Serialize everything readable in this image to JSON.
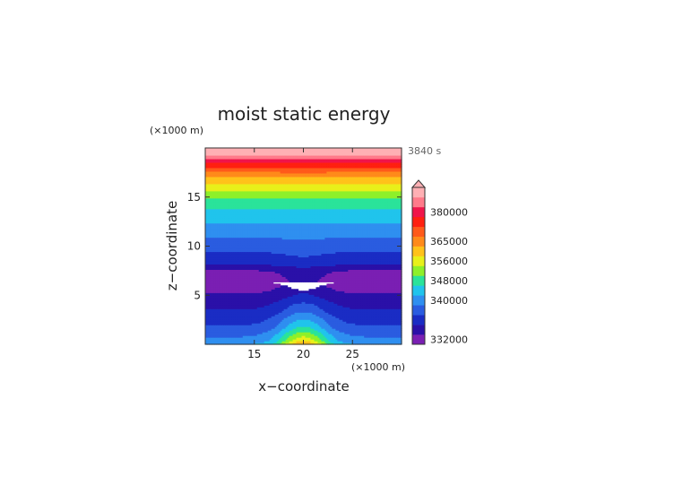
{
  "chart_data": {
    "type": "heatmap",
    "title": "moist static energy",
    "xlabel": "x−coordinate",
    "ylabel": "z−coordinate",
    "x_unit": "(×1000 m)",
    "y_unit": "(×1000 m)",
    "time_label": "3840 s",
    "xlim": [
      10,
      30
    ],
    "ylim": [
      0,
      20
    ],
    "x_ticks": [
      "15",
      "20",
      "25"
    ],
    "y_ticks": [
      "5",
      "10",
      "15"
    ],
    "x_tick_values": [
      15,
      20,
      25
    ],
    "y_tick_values": [
      5,
      10,
      15
    ],
    "colorbar_labels": [
      "380000",
      "365000",
      "356000",
      "348000",
      "340000",
      "332000"
    ],
    "levels": [
      {
        "value": 332000,
        "color": "#7a1fb3"
      },
      {
        "value": 334000,
        "color": "#2a10a8"
      },
      {
        "value": 336000,
        "color": "#1a2cc4"
      },
      {
        "value": 338000,
        "color": "#2a5ce0"
      },
      {
        "value": 340000,
        "color": "#2f8ff0"
      },
      {
        "value": 344000,
        "color": "#20c4ec"
      },
      {
        "value": 348000,
        "color": "#2ae39a"
      },
      {
        "value": 352000,
        "color": "#8ef02a"
      },
      {
        "value": 356000,
        "color": "#e8f01a"
      },
      {
        "value": 360000,
        "color": "#ffc21a"
      },
      {
        "value": 365000,
        "color": "#ff8a1a"
      },
      {
        "value": 370000,
        "color": "#ff5a1a"
      },
      {
        "value": 375000,
        "color": "#ff2010"
      },
      {
        "value": 380000,
        "color": "#f0154a"
      },
      {
        "value": 385000,
        "color": "#ff7a8a"
      },
      {
        "value": 390000,
        "color": "#ffb0b4"
      }
    ]
  }
}
